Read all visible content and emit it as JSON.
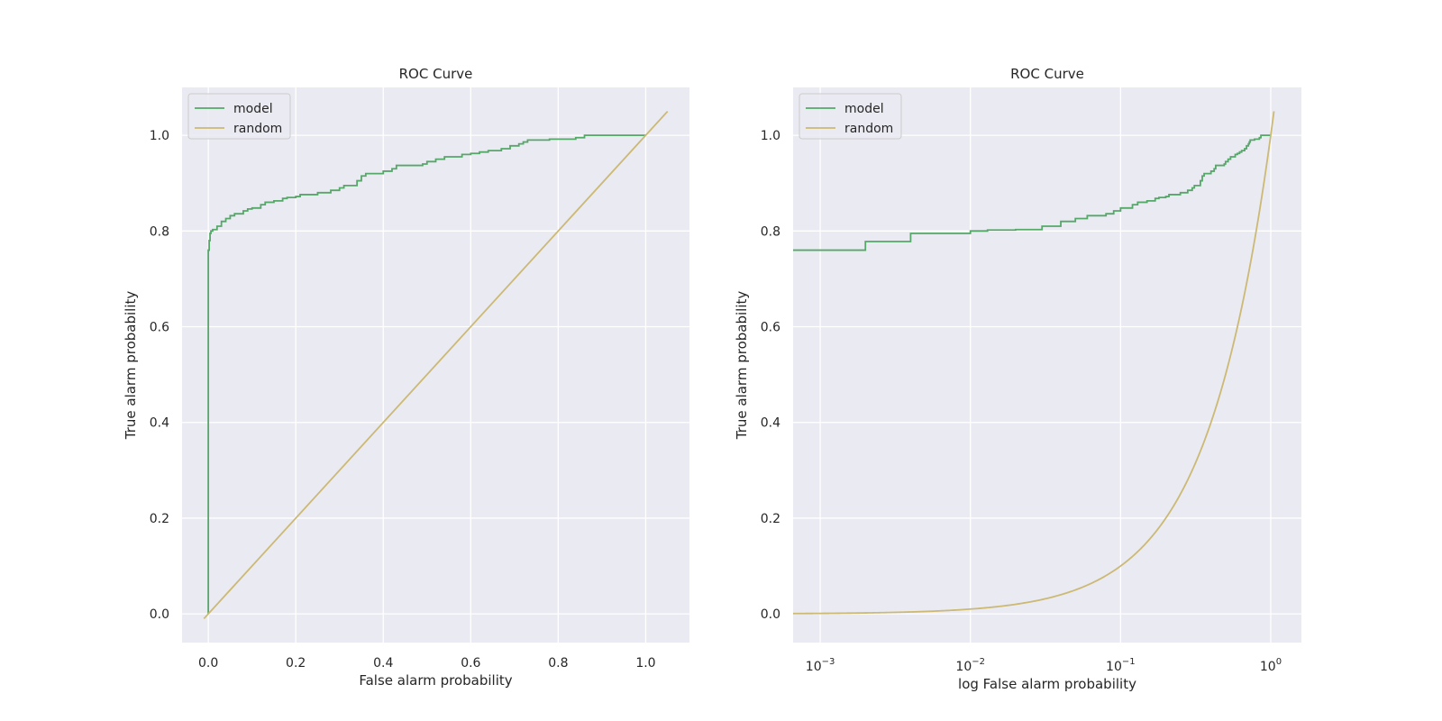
{
  "colors": {
    "background": "#eaeaf2",
    "grid": "#ffffff",
    "model": "#55a868",
    "random": "#ccb974",
    "text": "#262626",
    "legend_border": "#cccccc"
  },
  "chart_data": [
    {
      "type": "line",
      "title": "ROC Curve",
      "xlabel": "False alarm probability",
      "ylabel": "True alarm probability",
      "xscale": "linear",
      "xlim": [
        -0.06,
        1.1
      ],
      "ylim": [
        -0.06,
        1.1
      ],
      "xticks": [
        0.0,
        0.2,
        0.4,
        0.6,
        0.8,
        1.0
      ],
      "xtick_labels": [
        "0.0",
        "0.2",
        "0.4",
        "0.6",
        "0.8",
        "1.0"
      ],
      "yticks": [
        0.0,
        0.2,
        0.4,
        0.6,
        0.8,
        1.0
      ],
      "ytick_labels": [
        "0.0",
        "0.2",
        "0.4",
        "0.6",
        "0.8",
        "1.0"
      ],
      "grid": true,
      "legend_position": "upper left",
      "series": [
        {
          "name": "model",
          "color": "#55a868",
          "x": [
            0.0,
            0.0,
            0.002,
            0.002,
            0.004,
            0.004,
            0.006,
            0.006,
            0.01,
            0.01,
            0.02,
            0.02,
            0.03,
            0.03,
            0.04,
            0.04,
            0.05,
            0.05,
            0.06,
            0.06,
            0.08,
            0.08,
            0.09,
            0.09,
            0.1,
            0.1,
            0.12,
            0.12,
            0.13,
            0.13,
            0.15,
            0.15,
            0.17,
            0.17,
            0.18,
            0.18,
            0.2,
            0.2,
            0.21,
            0.21,
            0.25,
            0.25,
            0.28,
            0.28,
            0.3,
            0.3,
            0.31,
            0.31,
            0.34,
            0.34,
            0.35,
            0.35,
            0.36,
            0.36,
            0.4,
            0.4,
            0.42,
            0.42,
            0.43,
            0.43,
            0.49,
            0.49,
            0.5,
            0.5,
            0.52,
            0.52,
            0.54,
            0.54,
            0.58,
            0.58,
            0.6,
            0.6,
            0.62,
            0.62,
            0.64,
            0.64,
            0.67,
            0.67,
            0.69,
            0.69,
            0.71,
            0.71,
            0.72,
            0.72,
            0.73,
            0.73,
            0.78,
            0.78,
            0.84,
            0.84,
            0.86,
            0.86,
            1.0
          ],
          "y": [
            0.0,
            0.76,
            0.76,
            0.78,
            0.78,
            0.795,
            0.795,
            0.8,
            0.8,
            0.803,
            0.803,
            0.81,
            0.81,
            0.82,
            0.82,
            0.826,
            0.826,
            0.832,
            0.832,
            0.836,
            0.836,
            0.842,
            0.842,
            0.846,
            0.846,
            0.848,
            0.848,
            0.855,
            0.855,
            0.86,
            0.86,
            0.863,
            0.863,
            0.868,
            0.868,
            0.87,
            0.87,
            0.872,
            0.872,
            0.876,
            0.876,
            0.88,
            0.88,
            0.885,
            0.885,
            0.89,
            0.89,
            0.895,
            0.895,
            0.905,
            0.905,
            0.915,
            0.915,
            0.92,
            0.92,
            0.925,
            0.925,
            0.93,
            0.93,
            0.937,
            0.937,
            0.94,
            0.94,
            0.945,
            0.945,
            0.95,
            0.95,
            0.955,
            0.955,
            0.96,
            0.96,
            0.962,
            0.962,
            0.965,
            0.965,
            0.968,
            0.968,
            0.972,
            0.972,
            0.978,
            0.978,
            0.982,
            0.982,
            0.986,
            0.986,
            0.99,
            0.99,
            0.992,
            0.992,
            0.995,
            0.995,
            1.0,
            1.0
          ]
        },
        {
          "name": "random",
          "color": "#ccb974",
          "x": [
            -0.01,
            1.05
          ],
          "y": [
            -0.01,
            1.05
          ]
        }
      ]
    },
    {
      "type": "line",
      "title": "ROC Curve",
      "xlabel": "log False alarm probability",
      "ylabel": "True alarm probability",
      "xscale": "log",
      "xlim": [
        0.00066,
        1.6
      ],
      "ylim": [
        -0.06,
        1.1
      ],
      "xticks": [
        0.001,
        0.01,
        0.1,
        1.0
      ],
      "xtick_bases": [
        "10",
        "10",
        "10",
        "10"
      ],
      "xtick_exponents": [
        "−3",
        "−2",
        "−1",
        "0"
      ],
      "yticks": [
        0.0,
        0.2,
        0.4,
        0.6,
        0.8,
        1.0
      ],
      "ytick_labels": [
        "0.0",
        "0.2",
        "0.4",
        "0.6",
        "0.8",
        "1.0"
      ],
      "grid": true,
      "legend_position": "upper left",
      "series": [
        {
          "name": "model",
          "color": "#55a868",
          "x": [
            0.00066,
            0.002,
            0.002,
            0.004,
            0.004,
            0.01,
            0.01,
            0.013,
            0.013,
            0.02,
            0.02,
            0.03,
            0.03,
            0.04,
            0.04,
            0.05,
            0.05,
            0.06,
            0.06,
            0.08,
            0.08,
            0.09,
            0.09,
            0.1,
            0.1,
            0.12,
            0.12,
            0.13,
            0.13,
            0.15,
            0.15,
            0.17,
            0.17,
            0.18,
            0.18,
            0.2,
            0.2,
            0.21,
            0.21,
            0.25,
            0.25,
            0.28,
            0.28,
            0.3,
            0.3,
            0.31,
            0.31,
            0.34,
            0.34,
            0.35,
            0.35,
            0.36,
            0.36,
            0.4,
            0.4,
            0.42,
            0.42,
            0.43,
            0.43,
            0.49,
            0.49,
            0.5,
            0.5,
            0.52,
            0.52,
            0.54,
            0.54,
            0.58,
            0.58,
            0.6,
            0.6,
            0.62,
            0.62,
            0.64,
            0.64,
            0.67,
            0.67,
            0.69,
            0.69,
            0.71,
            0.71,
            0.72,
            0.72,
            0.73,
            0.73,
            0.78,
            0.78,
            0.84,
            0.84,
            0.86,
            0.86,
            1.0
          ],
          "y": [
            0.76,
            0.76,
            0.778,
            0.778,
            0.795,
            0.795,
            0.8,
            0.8,
            0.802,
            0.802,
            0.803,
            0.803,
            0.81,
            0.81,
            0.82,
            0.82,
            0.826,
            0.826,
            0.832,
            0.832,
            0.836,
            0.836,
            0.842,
            0.842,
            0.848,
            0.848,
            0.855,
            0.855,
            0.86,
            0.86,
            0.863,
            0.863,
            0.868,
            0.868,
            0.87,
            0.87,
            0.872,
            0.872,
            0.876,
            0.876,
            0.88,
            0.88,
            0.885,
            0.885,
            0.89,
            0.89,
            0.895,
            0.895,
            0.905,
            0.905,
            0.915,
            0.915,
            0.92,
            0.92,
            0.925,
            0.925,
            0.93,
            0.93,
            0.937,
            0.937,
            0.94,
            0.94,
            0.945,
            0.945,
            0.95,
            0.95,
            0.955,
            0.955,
            0.96,
            0.96,
            0.962,
            0.962,
            0.965,
            0.965,
            0.968,
            0.968,
            0.972,
            0.972,
            0.978,
            0.978,
            0.982,
            0.982,
            0.986,
            0.986,
            0.99,
            0.99,
            0.992,
            0.992,
            0.995,
            0.995,
            1.0,
            1.0
          ]
        },
        {
          "name": "random",
          "color": "#ccb974",
          "function": "y = x",
          "x_range": [
            0.00066,
            1.05
          ]
        }
      ]
    }
  ]
}
